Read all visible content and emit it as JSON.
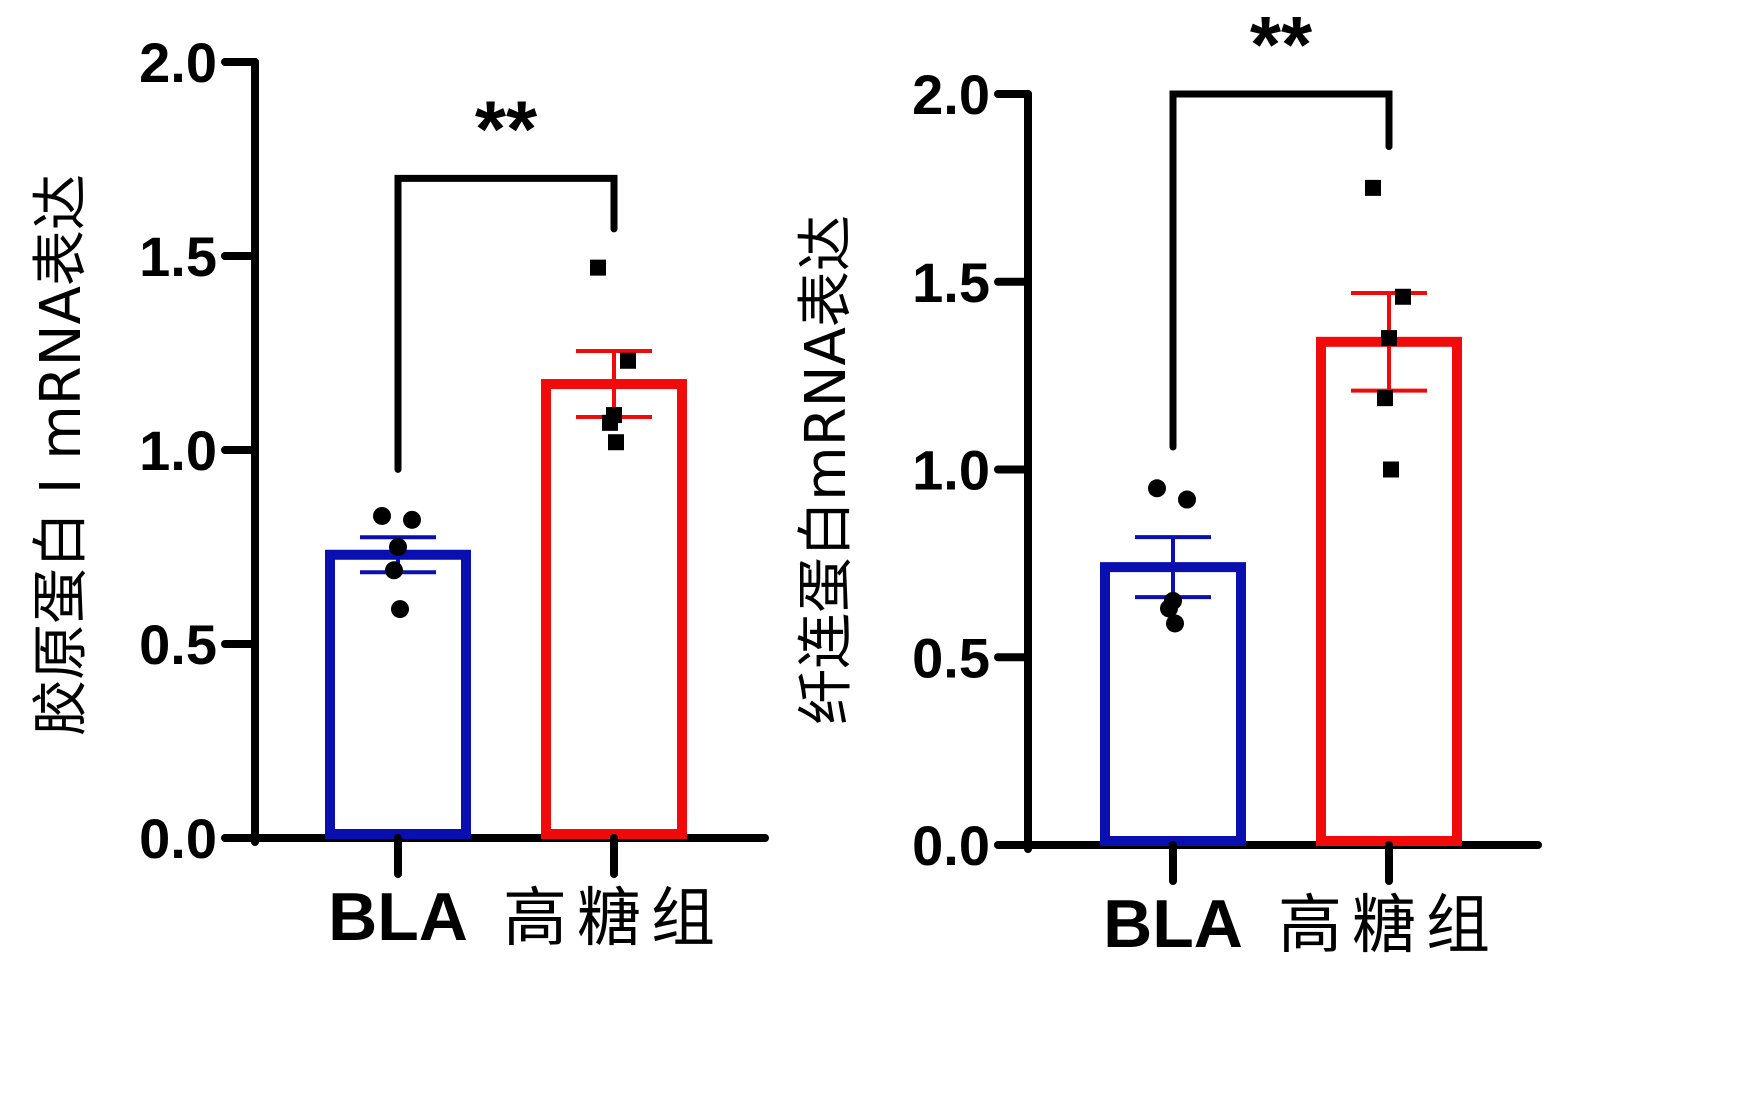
{
  "chart_data": [
    {
      "type": "bar",
      "ylabel": "胶原蛋白 I mRNA表达",
      "ylim": [
        0,
        2.0
      ],
      "yticks": [
        "0.0",
        "0.5",
        "1.0",
        "1.5",
        "2.0"
      ],
      "categories": [
        "BLA",
        "高糖组"
      ],
      "values": [
        0.73,
        1.17
      ],
      "errors": [
        0.045,
        0.085
      ],
      "colors": [
        "#0a10b0",
        "#f00a0a"
      ],
      "points": [
        [
          0.83,
          0.82,
          0.75,
          0.69,
          0.59
        ],
        [
          1.47,
          1.23,
          1.09,
          1.07,
          1.02
        ]
      ],
      "point_markers": [
        "circle",
        "square"
      ],
      "significance": {
        "label": "**",
        "left_value": 0.95,
        "right_value": 1.57,
        "top_value": 1.7
      }
    },
    {
      "type": "bar",
      "ylabel": "纤连蛋白mRNA表达",
      "ylim": [
        0,
        2.0
      ],
      "yticks": [
        "0.0",
        "0.5",
        "1.0",
        "1.5",
        "2.0"
      ],
      "categories": [
        "BLA",
        "高糖组"
      ],
      "values": [
        0.74,
        1.34
      ],
      "errors": [
        0.08,
        0.13
      ],
      "colors": [
        "#0a10b0",
        "#f00a0a"
      ],
      "points": [
        [
          0.95,
          0.92,
          0.65,
          0.63,
          0.59
        ],
        [
          1.75,
          1.46,
          1.35,
          1.19,
          1.0
        ]
      ],
      "point_markers": [
        "circle",
        "square"
      ],
      "significance": {
        "label": "**",
        "left_value": 1.06,
        "right_value": 1.86,
        "top_value": 2.0
      }
    }
  ]
}
